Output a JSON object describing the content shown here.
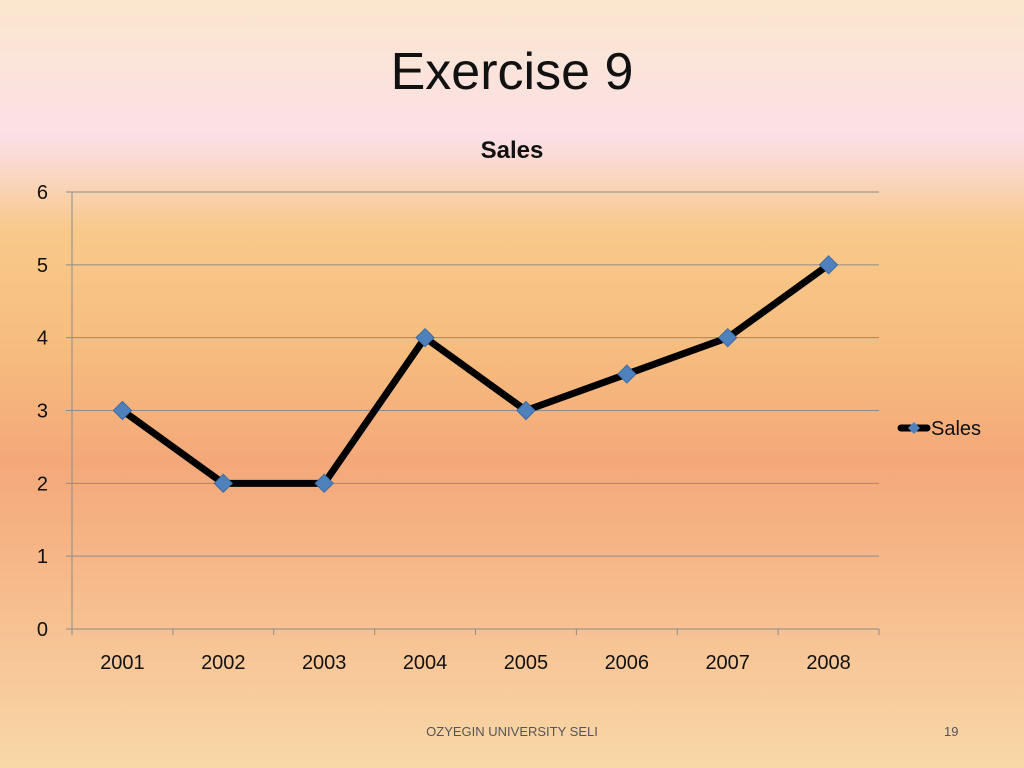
{
  "slide": {
    "title": "Exercise 9",
    "footer": "OZYEGIN UNIVERSITY SELI",
    "number": "19"
  },
  "chart_data": {
    "type": "line",
    "title": "Sales",
    "xlabel": "",
    "ylabel": "",
    "categories": [
      "2001",
      "2002",
      "2003",
      "2004",
      "2005",
      "2006",
      "2007",
      "2008"
    ],
    "series": [
      {
        "name": "Sales",
        "values": [
          3,
          2,
          2,
          4,
          3,
          3.5,
          4,
          5
        ],
        "line_color": "#000000",
        "marker_color": "#4f81bd",
        "marker": "diamond"
      }
    ],
    "ylim": [
      0,
      6
    ],
    "yticks": [
      "0",
      "1",
      "2",
      "3",
      "4",
      "5",
      "6"
    ],
    "grid": true,
    "legend": "right"
  }
}
